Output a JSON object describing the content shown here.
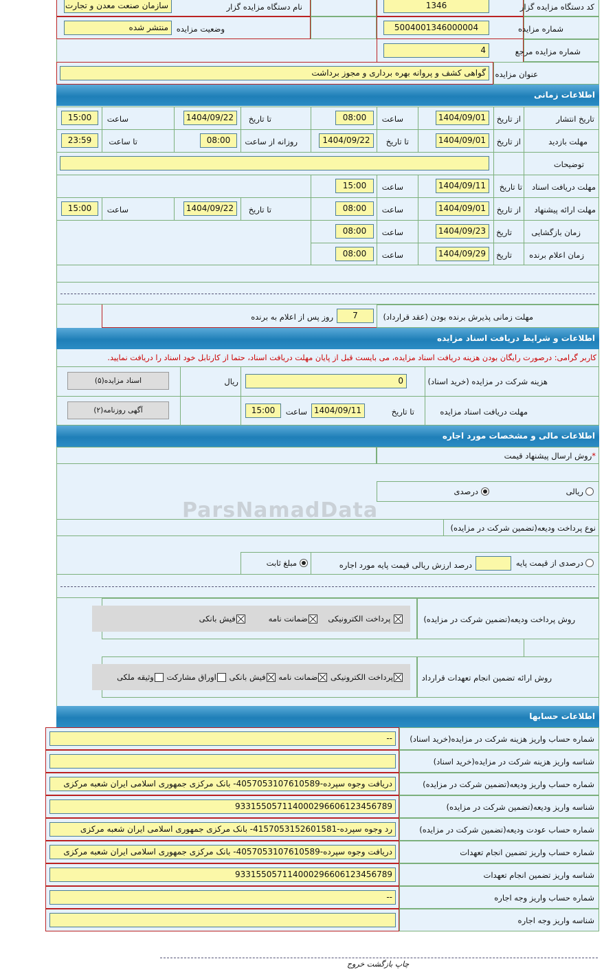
{
  "general": {
    "agency_code_label": "کد دستگاه مزایده گزار",
    "agency_code": "1346",
    "agency_name_label": "نام دستگاه مزایده گزار",
    "agency_name": "سازمان صنعت معدن و تجارت",
    "auction_number_label": "شماره مزایده",
    "auction_number": "5004001346000004",
    "status_label": "وضعیت مزایده",
    "status": "منتشر شده",
    "ref_number_label": "شماره مزایده مرجع",
    "ref_number": "4",
    "title_label": "عنوان مزایده",
    "title": "گواهی کشف و پروانه بهره برداری و مجوز برداشت"
  },
  "timing": {
    "header": "اطلاعات زمانی",
    "from_date": "از تاریخ",
    "to_date": "تا تاریخ",
    "time": "ساعت",
    "date": "تاریخ",
    "to_time": "تا ساعت",
    "daily_from_time": "روزانه از ساعت",
    "publish": {
      "label": "تاریخ انتشار",
      "from": "1404/09/01",
      "from_time": "08:00",
      "to": "1404/09/22",
      "to_time": "15:00"
    },
    "visit": {
      "label": "مهلت بازدید",
      "from": "1404/09/01",
      "to": "1404/09/22",
      "daily_from": "08:00",
      "daily_to": "23:59"
    },
    "description_label": "توضیحات",
    "description": "",
    "doc_deadline": {
      "label": "مهلت دریافت اسناد",
      "to": "1404/09/11",
      "time": "15:00"
    },
    "offer": {
      "label": "مهلت ارائه پیشنهاد",
      "from": "1404/09/01",
      "from_time": "08:00",
      "to": "1404/09/22",
      "to_time": "15:00"
    },
    "opening": {
      "label": "زمان بازگشایی",
      "date": "1404/09/23",
      "time": "08:00"
    },
    "winner": {
      "label": "زمان اعلام برنده",
      "date": "1404/09/29",
      "time": "08:00"
    },
    "acceptance_label": "مهلت زمانی پذیرش برنده بودن (عقد قرارداد)",
    "acceptance_days": "7",
    "acceptance_suffix": "روز پس از اعلام به برنده"
  },
  "documents": {
    "header": "اطلاعات و شرایط دریافت اسناد مزایده",
    "notice": "کاربر گرامی: درصورت رایگان بودن هزینه دریافت اسناد مزایده، می بایست قبل از پایان مهلت دریافت اسناد، حتما از کارتابل خود اسناد را دریافت نمایید.",
    "fee_label": "هزینه شرکت در مزایده (خرید اسناد)",
    "fee": "0",
    "currency": "ریال",
    "docs_button": "اسناد مزایده(۵)",
    "deadline_label": "مهلت دریافت اسناد مزایده",
    "to_date": "تا تاریخ",
    "date": "1404/09/11",
    "time_label": "ساعت",
    "time": "15:00",
    "newspaper_button": "آگهی روزنامه(۲)"
  },
  "financial": {
    "header": "اطلاعات مالی و مشخصات مورد اجاره",
    "price_method_label": "روش ارسال پیشنهاد قیمت",
    "required_mark": "*",
    "rial_option": "ریالی",
    "percent_option": "درصدی",
    "selected_price_method": "درصدی",
    "deposit_type_label": "نوع پرداخت ودیعه(تضمین شرکت در مزایده)",
    "percent_of_base": "درصدی از قیمت پایه",
    "percent_of_base_value": "",
    "percent_suffix": "درصد ارزش ریالی قیمت پایه مورد اجاره",
    "fixed_amount": "مبلغ ثابت",
    "selected_deposit_type": "مبلغ ثابت",
    "deposit_method_label": "روش پرداخت ودیعه(تضمین شرکت در مزایده)",
    "deposit_methods": [
      {
        "label": "پرداخت الکترونیکی",
        "checked": true
      },
      {
        "label": "ضمانت نامه",
        "checked": true
      },
      {
        "label": "فیش بانکی",
        "checked": true
      }
    ],
    "guarantee_label": "روش ارائه تضمین انجام تعهدات قرارداد",
    "guarantee_methods": [
      {
        "label": "پرداخت الکترونیکی",
        "checked": true
      },
      {
        "label": "ضمانت نامه",
        "checked": true
      },
      {
        "label": "فیش بانکی",
        "checked": true
      },
      {
        "label": "اوراق مشارکت",
        "checked": false
      },
      {
        "label": "وثیقه ملکی",
        "checked": false
      }
    ]
  },
  "accounts": {
    "header": "اطلاعات حسابها",
    "rows": [
      {
        "label": "شماره حساب واریز هزینه شرکت در مزایده(خرید اسناد)",
        "value": "--"
      },
      {
        "label": "شناسه واریز هزینه شرکت در مزایده(خرید اسناد)",
        "value": ""
      },
      {
        "label": "شماره حساب واریز ودیعه(تضمین شرکت در مزایده)",
        "value": "دریافت وجوه سپرده-4057053107610589- بانک مرکزی جمهوری اسلامی ایران شعبه مرکزی"
      },
      {
        "label": "شناسه واریز ودیعه(تضمین شرکت در مزایده)",
        "value": "933155057114000296606123456789"
      },
      {
        "label": "شماره حساب عودت ودیعه(تضمین شرکت در مزایده)",
        "value": "رد وجوه سپرده-4157053152601581- بانک مرکزی جمهوری اسلامی ایران شعبه مرکزی"
      },
      {
        "label": "شماره حساب واریز تضمین انجام تعهدات",
        "value": "دریافت وجوه سپرده-4057053107610589- بانک مرکزی جمهوری اسلامی ایران شعبه مرکزی"
      },
      {
        "label": "شناسه واریز تضمین انجام تعهدات",
        "value": "933155057114000296606123456789"
      },
      {
        "label": "شماره حساب واریز وجه اجاره",
        "value": "--"
      },
      {
        "label": "شناسه واریز وجه اجاره",
        "value": ""
      }
    ]
  },
  "footer": {
    "links": "چاپ بازگشت خروج"
  },
  "watermark": "ParsNamadData",
  "colors": {
    "header": "#2b8cc4",
    "input_bg": "#fbf8a8",
    "cell_bg": "#e7f2fb",
    "notice": "#cc0000"
  }
}
